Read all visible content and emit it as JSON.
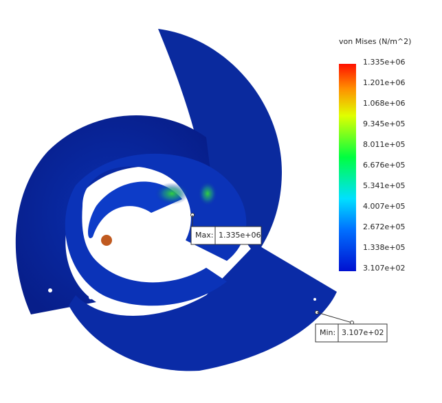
{
  "legend": {
    "title": "von Mises (N/m^2)",
    "labels": [
      "1.335e+06",
      "1.201e+06",
      "1.068e+06",
      "9.345e+05",
      "8.011e+05",
      "6.676e+05",
      "5.341e+05",
      "4.007e+05",
      "2.672e+05",
      "1.338e+05",
      "3.107e+02"
    ]
  },
  "probes": [
    {
      "label": "Max:",
      "value": "1.335e+06"
    },
    {
      "label": "Min:",
      "value": "3.107e+02"
    }
  ]
}
